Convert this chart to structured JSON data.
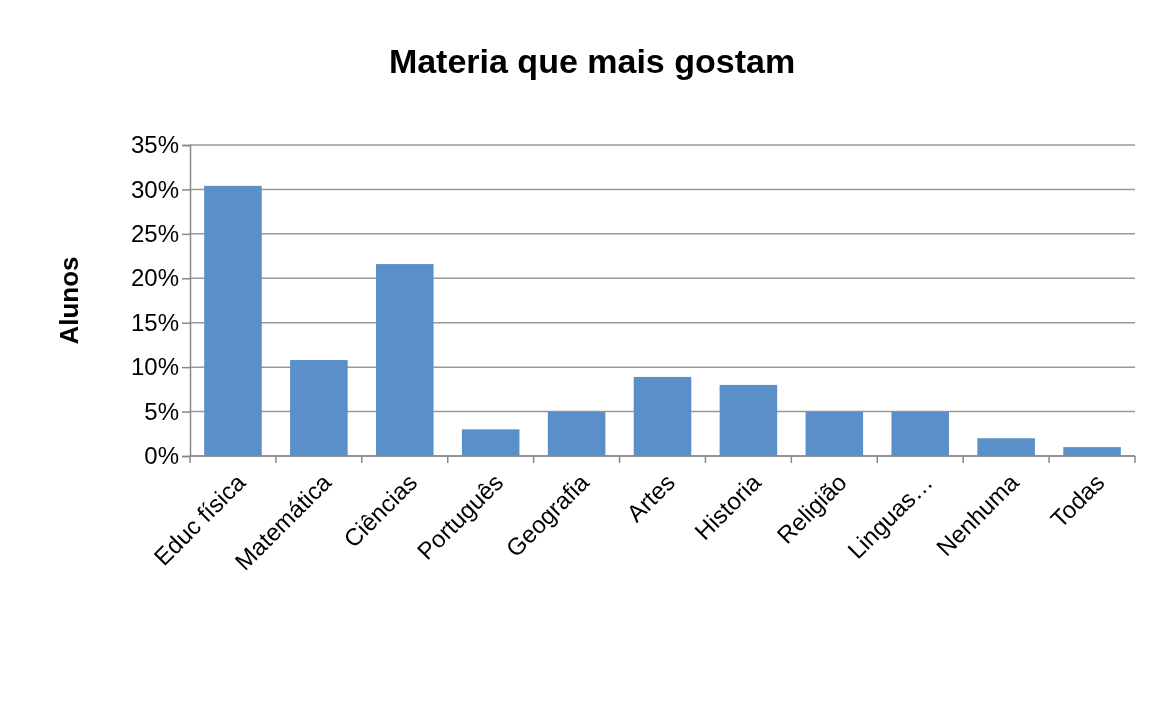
{
  "chart_data": {
    "type": "bar",
    "title": "Materia que mais gostam",
    "ylabel": "Alunos",
    "categories": [
      "Educ física",
      "Matemática",
      "Ciências",
      "Português",
      "Geografia",
      "Artes",
      "Historia",
      "Religião",
      "Linguas…",
      "Nenhuma",
      "Todas"
    ],
    "values": [
      30.4,
      10.8,
      21.6,
      3,
      5,
      8.9,
      8,
      5,
      5,
      2,
      1
    ],
    "color": "#5b8fc7",
    "ylim": [
      0,
      35
    ],
    "yticks": [
      {
        "value": 0,
        "label": "0%"
      },
      {
        "value": 5,
        "label": "5%"
      },
      {
        "value": 10,
        "label": "10%"
      },
      {
        "value": 15,
        "label": "15%"
      },
      {
        "value": 20,
        "label": "20%"
      },
      {
        "value": 25,
        "label": "25%"
      },
      {
        "value": 30,
        "label": "30%"
      },
      {
        "value": 35,
        "label": "35%"
      }
    ],
    "grid": "y"
  }
}
